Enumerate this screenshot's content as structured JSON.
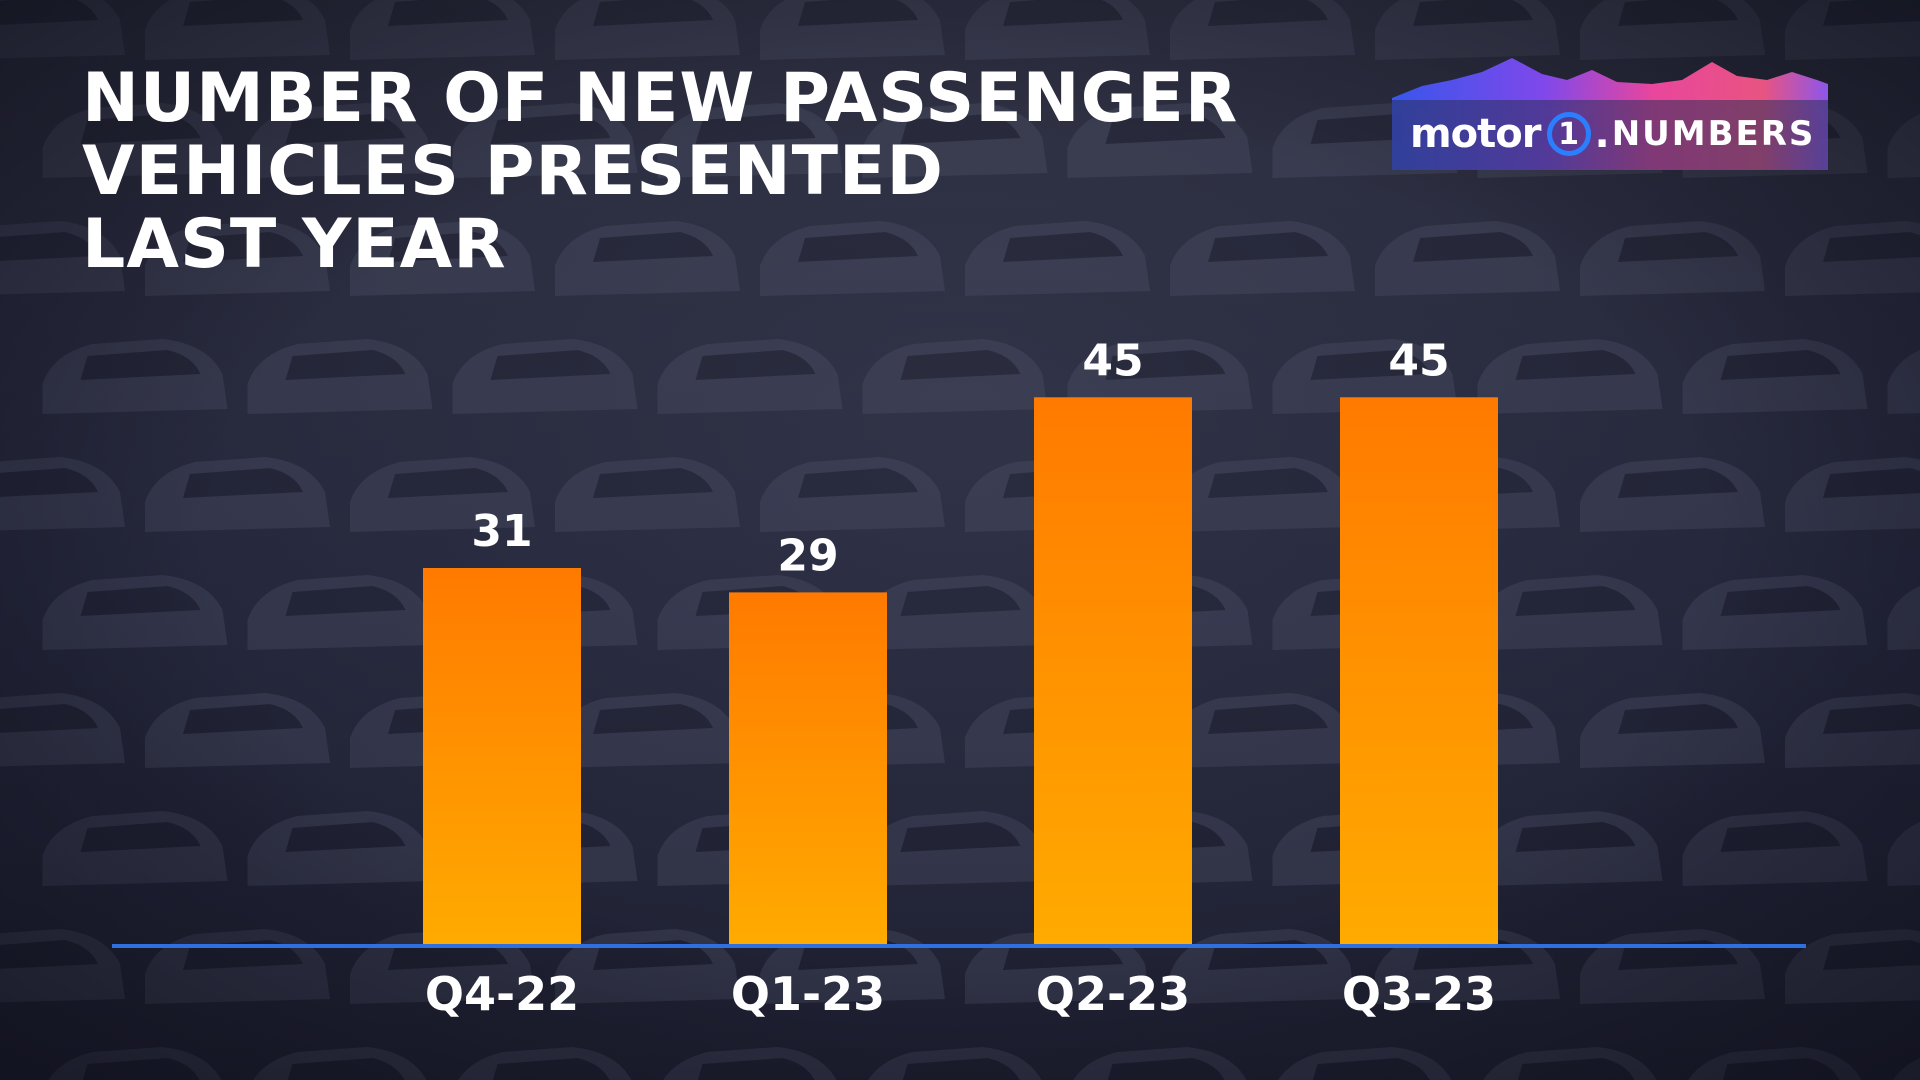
{
  "brand": {
    "name_motor": "motor",
    "name_one": "1",
    "name_dot": ".",
    "name_numbers": "NUMBERS"
  },
  "chart_data": {
    "type": "bar",
    "title": "NUMBER OF NEW PASSENGER\nVEHICLES PRESENTED\nLAST YEAR",
    "categories": [
      "Q4-22",
      "Q1-23",
      "Q2-23",
      "Q3-23"
    ],
    "values": [
      31,
      29,
      45,
      45
    ],
    "data_labels": [
      "31",
      "29",
      "45",
      "45"
    ],
    "xlabel": "",
    "ylabel": "",
    "ylim": [
      0,
      62
    ],
    "grid": false,
    "legend": "none",
    "colors": {
      "bar_top": "#ff7a00",
      "bar_bottom": "#ffab00",
      "baseline": "#2f6fe0",
      "text": "#ffffff",
      "background": "#262838"
    }
  }
}
